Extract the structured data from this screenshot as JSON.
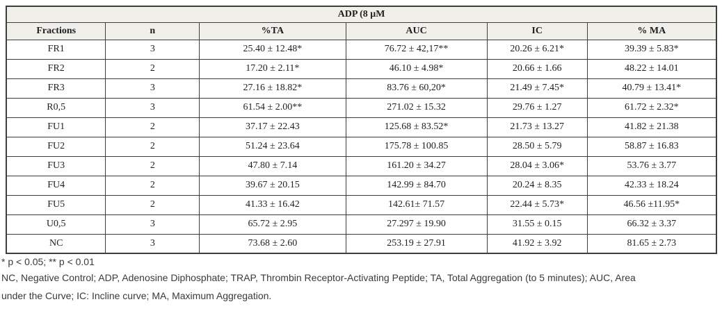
{
  "table": {
    "title": "ADP (8 μM",
    "columns": [
      "Fractions",
      "n",
      "%TA",
      "AUC",
      "IC",
      "% MA"
    ],
    "column_widths_pct": [
      14.0,
      13.2,
      20.6,
      19.9,
      14.1,
      18.2
    ],
    "rows": [
      [
        "FR1",
        "3",
        "25.40 ± 12.48*",
        "76.72 ± 42,17**",
        "20.26 ± 6.21*",
        "39.39 ± 5.83*"
      ],
      [
        "FR2",
        "2",
        "17.20 ± 2.11*",
        "46.10 ± 4.98*",
        "20.66 ± 1.66",
        "48.22 ± 14.01"
      ],
      [
        "FR3",
        "3",
        "27.16 ± 18.82*",
        "83.76 ± 60,20*",
        "21.49 ± 7.45*",
        "40.79 ± 13.41*"
      ],
      [
        "R0,5",
        "3",
        "61.54 ± 2.00**",
        "271.02 ± 15.32",
        "29.76 ± 1.27",
        "61.72 ± 2.32*"
      ],
      [
        "FU1",
        "2",
        "37.17 ± 22.43",
        "125.68 ± 83.52*",
        "21.73 ± 13.27",
        "41.82 ± 21.38"
      ],
      [
        "FU2",
        "2",
        "51.24 ± 23.64",
        "175.78 ± 100.85",
        "28.50 ± 5.79",
        "58.87 ± 16.83"
      ],
      [
        "FU3",
        "2",
        "47.80 ± 7.14",
        "161.20 ± 34.27",
        "28.04 ± 3.06*",
        "53.76 ± 3.77"
      ],
      [
        "FU4",
        "2",
        "39.67 ± 20.15",
        "142.99 ± 84.70",
        "20.24 ± 8.35",
        "42.33 ± 18.24"
      ],
      [
        "FU5",
        "2",
        "41.33 ± 16.42",
        "142.61± 71.57",
        "22.44 ± 5.73*",
        "46.56 ±11.95*"
      ],
      [
        "U0,5",
        "3",
        "65.72 ± 2.95",
        "27.297 ± 19.90",
        "31.55 ± 0.15",
        "66.32 ± 3.37"
      ],
      [
        "NC",
        "3",
        "73.68 ± 2.60",
        "253.19 ± 27.91",
        "41.92 ± 3.92",
        "81.65 ± 2.73"
      ]
    ]
  },
  "footnotes": {
    "line1": "* p < 0.05; ** p < 0.01",
    "line2": "NC, Negative Control; ADP, Adenosine Diphosphate; TRAP, Thrombin Receptor-Activating Peptide; TA, Total Aggregation (to 5 minutes); AUC, Area",
    "line3": "under the Curve; IC: Incline curve; MA, Maximum Aggregation."
  },
  "colors": {
    "header_bg": "#f1efea",
    "border": "#3d3d3d",
    "table_text": "#1f1f1f",
    "footnote_text": "#3a3a3a"
  }
}
